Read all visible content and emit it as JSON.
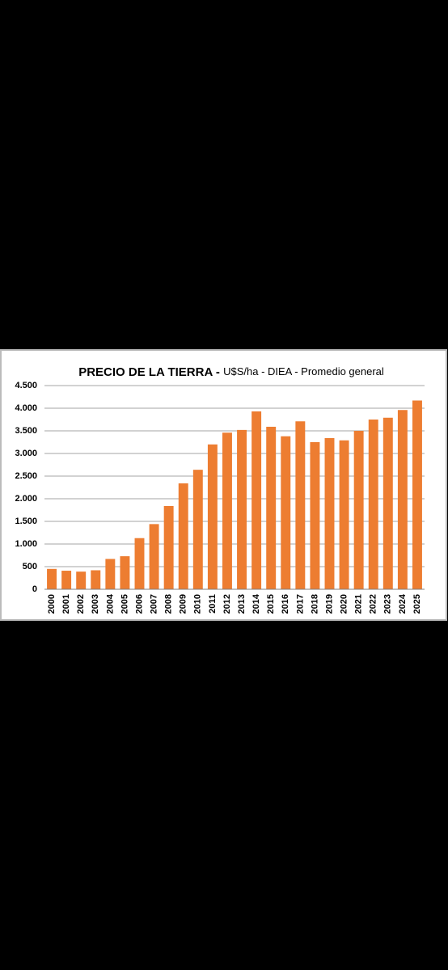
{
  "chart_data": {
    "type": "bar",
    "title": "PRECIO DE LA TIERRA -",
    "subtitle": "U$S/ha - DIEA - Promedio general",
    "categories": [
      "2000",
      "2001",
      "2002",
      "2003",
      "2004",
      "2005",
      "2006",
      "2007",
      "2008",
      "2009",
      "2010",
      "2011",
      "2012",
      "2013",
      "2014",
      "2015",
      "2016",
      "2017",
      "2018",
      "2019",
      "2020",
      "2021",
      "2022",
      "2023",
      "2024",
      "2025"
    ],
    "values": [
      450,
      410,
      390,
      420,
      670,
      730,
      1130,
      1440,
      1840,
      2340,
      2640,
      3200,
      3460,
      3520,
      3930,
      3590,
      3380,
      3710,
      3250,
      3340,
      3290,
      3500,
      3750,
      3790,
      3960,
      4170
    ],
    "color": "#ed7d31",
    "ylim": [
      0,
      4500
    ],
    "yticks": [
      0,
      {
        "value": 500,
        "label": "500"
      },
      {
        "value": 1000,
        "label": "1.000"
      },
      {
        "value": 1500,
        "label": "1.500"
      },
      {
        "value": 2000,
        "label": "2.000"
      },
      {
        "value": 2500,
        "label": "2.500"
      },
      {
        "value": 3000,
        "label": "3.000"
      },
      {
        "value": 3500,
        "label": "3.500"
      },
      {
        "value": 4000,
        "label": "4.000"
      },
      {
        "value": 4500,
        "label": "4.500"
      }
    ],
    "grid": true
  }
}
